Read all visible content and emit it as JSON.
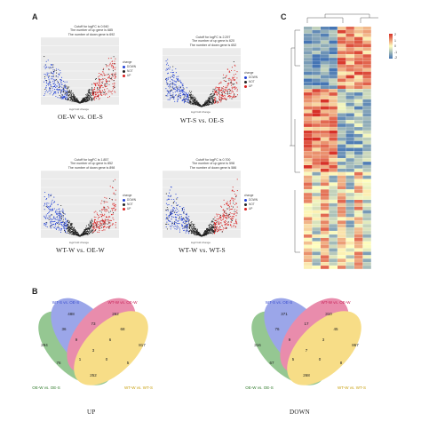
{
  "panels": {
    "a": "A",
    "b": "B",
    "c": "C"
  },
  "volcano": [
    {
      "caption": "OE-W vs. OE-S",
      "lines": [
        "Cutoff for logFC is 0.940",
        "The number of up gene is 685",
        "The number of down gene is 692"
      ]
    },
    {
      "caption": "WT-S vs. OE-S",
      "lines": [
        "Cutoff for logFC is 2.297",
        "The number of up gene is 620",
        "The number of down gene is 652"
      ]
    },
    {
      "caption": "WT-W vs. OE-W",
      "lines": [
        "Cutoff for logFC is 1.857",
        "The number of up gene is 852",
        "The number of down gene is 898"
      ]
    },
    {
      "caption": "WT-W vs. WT-S",
      "lines": [
        "Cutoff for logFC is 0.700",
        "The number of up gene is 598",
        "The number of down gene is 586"
      ]
    }
  ],
  "volcano_axes": {
    "x": "log2 fold change",
    "y": "-log10 p-value"
  },
  "legend": {
    "title": "change",
    "items": [
      "DOWN",
      "NOT",
      "UP"
    ],
    "colors": [
      "#1f3fd6",
      "#222222",
      "#d81e1e"
    ]
  },
  "venn": [
    {
      "caption": "UP",
      "sets": [
        "WT-S vs. OE-S",
        "WT-W vs. OE-W",
        "OE-W vs. OE-S",
        "WT-W vs. WT-S"
      ],
      "numbers": [
        "488",
        "262",
        "294",
        "817",
        "36",
        "73",
        "68",
        "76",
        "9",
        "6",
        "5",
        "1",
        "3",
        "0",
        "252"
      ]
    },
    {
      "caption": "DOWN",
      "sets": [
        "WT-S vs. OE-S",
        "WT-W vs. OE-W",
        "OE-W vs. OE-S",
        "WT-W vs. WT-S"
      ],
      "numbers": [
        "371",
        "310",
        "316",
        "867",
        "76",
        "17",
        "45",
        "67",
        "9",
        "3",
        "8",
        "5",
        "7",
        "0",
        "268"
      ]
    }
  ],
  "venn_colors": [
    "#4a5fd8",
    "#d8306a",
    "#3f9a3a",
    "#f2c326"
  ],
  "heatmap": {
    "legend_ticks": [
      "2",
      "1",
      "0",
      "-1",
      "-2"
    ],
    "low": "#4575b4",
    "mid": "#ffffbf",
    "high": "#d73027"
  }
}
